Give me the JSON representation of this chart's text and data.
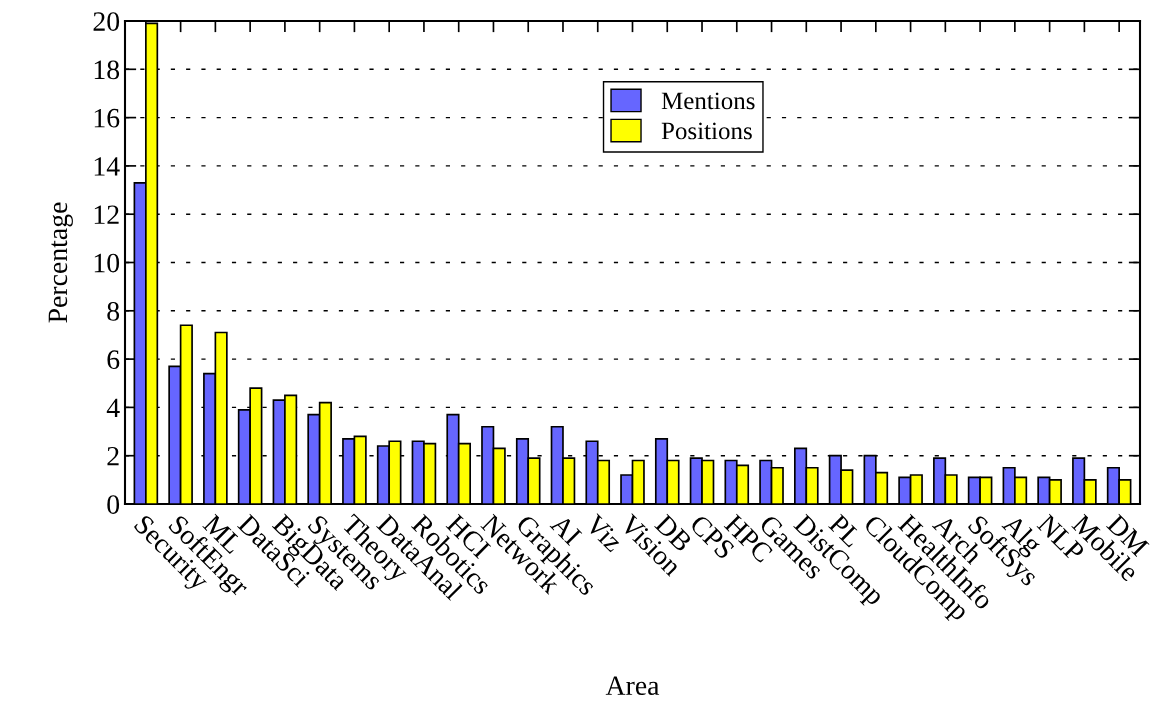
{
  "chart_data": {
    "type": "bar",
    "xlabel": "Area",
    "ylabel": "Percentage",
    "categories": [
      "Security",
      "SoftEngr",
      "ML",
      "DataSci",
      "BigData",
      "Systems",
      "Theory",
      "DataAnal",
      "Robotics",
      "HCI",
      "Network",
      "Graphics",
      "AI",
      "Viz",
      "Vision",
      "DB",
      "CPS",
      "HPC",
      "Games",
      "DistComp",
      "PL",
      "CloudComp",
      "HealthInfo",
      "Arch",
      "SoftSys",
      "Alg",
      "NLP",
      "Mobile",
      "DM"
    ],
    "series": [
      {
        "name": "Mentions",
        "color": "#6666ff",
        "values": [
          13.3,
          5.7,
          5.4,
          3.9,
          4.3,
          3.7,
          2.7,
          2.4,
          2.6,
          3.7,
          3.2,
          2.7,
          3.2,
          2.6,
          1.2,
          2.7,
          1.9,
          1.8,
          1.8,
          2.3,
          2.0,
          2.0,
          1.1,
          1.9,
          1.1,
          1.5,
          1.1,
          1.9,
          1.5
        ]
      },
      {
        "name": "Positions",
        "color": "#ffff00",
        "values": [
          19.9,
          7.4,
          7.1,
          4.8,
          4.5,
          4.2,
          2.8,
          2.6,
          2.5,
          2.5,
          2.3,
          1.9,
          1.9,
          1.8,
          1.8,
          1.8,
          1.8,
          1.6,
          1.5,
          1.5,
          1.4,
          1.3,
          1.2,
          1.2,
          1.1,
          1.1,
          1.0,
          1.0,
          1.0
        ]
      }
    ],
    "ylim": [
      0,
      20
    ],
    "yticks": [
      0,
      2,
      4,
      6,
      8,
      10,
      12,
      14,
      16,
      18,
      20
    ],
    "grid": "y",
    "legend": "top",
    "line_style": "dashed"
  }
}
